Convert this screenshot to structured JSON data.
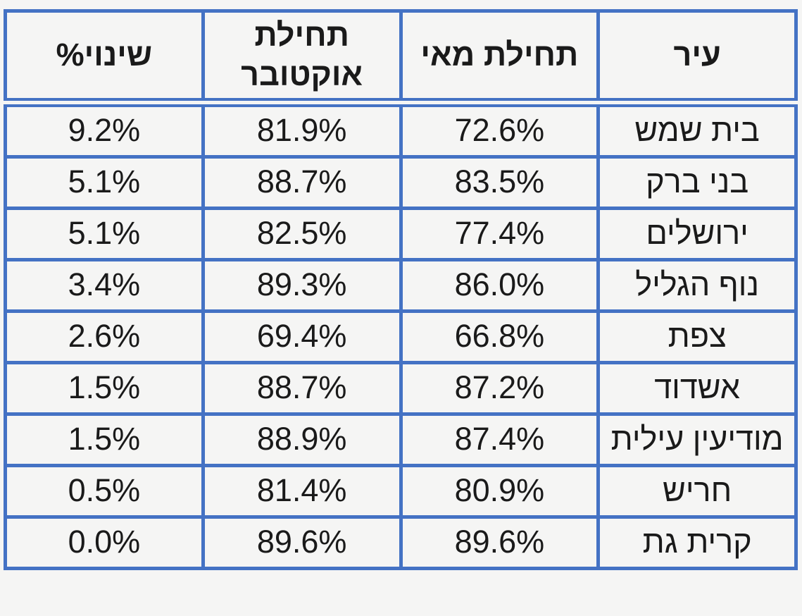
{
  "colors": {
    "border_blue": "#4472C4",
    "background": "#F5F5F4",
    "text": "#1A1A1A"
  },
  "table": {
    "direction": "rtl",
    "columns": [
      {
        "key": "city",
        "label": "עיר"
      },
      {
        "key": "may",
        "label": "תחילת מאי"
      },
      {
        "key": "october",
        "label": "תחילת אוקטובר"
      },
      {
        "key": "change",
        "label": "שינוי%"
      }
    ],
    "rows": [
      {
        "city": "בית שמש",
        "may": "72.6%",
        "october": "81.9%",
        "change": "9.2%"
      },
      {
        "city": "בני ברק",
        "may": "83.5%",
        "october": "88.7%",
        "change": "5.1%"
      },
      {
        "city": "ירושלים",
        "may": "77.4%",
        "october": "82.5%",
        "change": "5.1%"
      },
      {
        "city": "נוף הגליל",
        "may": "86.0%",
        "october": "89.3%",
        "change": "3.4%"
      },
      {
        "city": "צפת",
        "may": "66.8%",
        "october": "69.4%",
        "change": "2.6%"
      },
      {
        "city": "אשדוד",
        "may": "87.2%",
        "october": "88.7%",
        "change": "1.5%"
      },
      {
        "city": "מודיעין עילית",
        "may": "87.4%",
        "october": "88.9%",
        "change": "1.5%"
      },
      {
        "city": "חריש",
        "may": "80.9%",
        "october": "81.4%",
        "change": "0.5%"
      },
      {
        "city": "קרית גת",
        "may": "89.6%",
        "october": "89.6%",
        "change": "0.0%"
      }
    ]
  },
  "chart_data": {
    "type": "table",
    "title": "",
    "columns": [
      "עיר",
      "תחילת מאי",
      "תחילת אוקטובר",
      "שינוי%"
    ],
    "units": "percent",
    "rows": [
      [
        "בית שמש",
        72.6,
        81.9,
        9.2
      ],
      [
        "בני ברק",
        83.5,
        88.7,
        5.1
      ],
      [
        "ירושלים",
        77.4,
        82.5,
        5.1
      ],
      [
        "נוף הגליל",
        86.0,
        89.3,
        3.4
      ],
      [
        "צפת",
        66.8,
        69.4,
        2.6
      ],
      [
        "אשדוד",
        87.2,
        88.7,
        1.5
      ],
      [
        "מודיעין עילית",
        87.4,
        88.9,
        1.5
      ],
      [
        "חריש",
        80.9,
        81.4,
        0.5
      ],
      [
        "קרית גת",
        89.6,
        89.6,
        0.0
      ]
    ]
  }
}
